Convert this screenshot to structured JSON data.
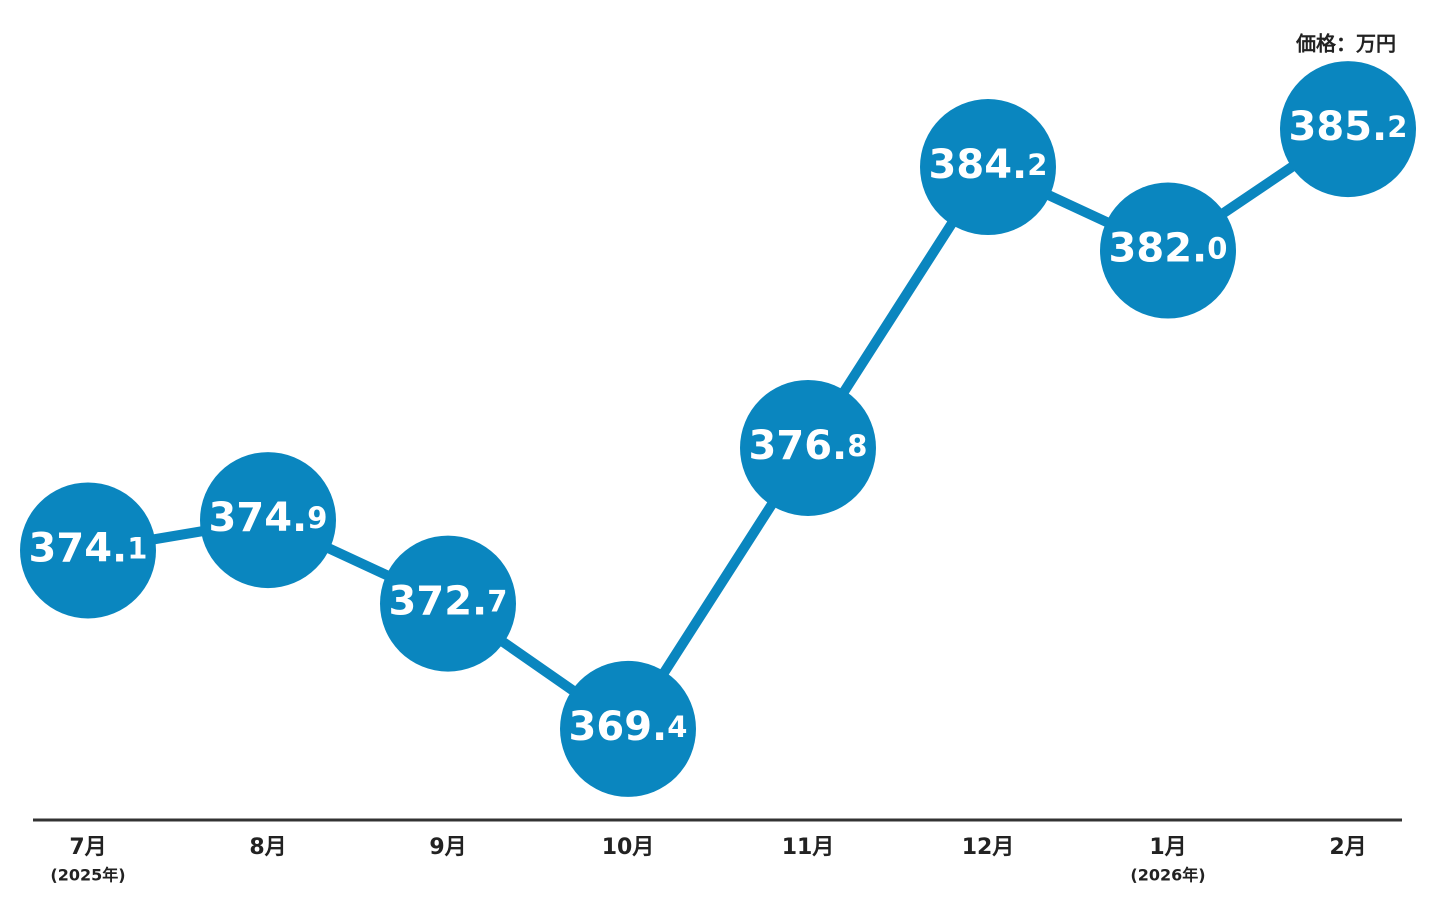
{
  "chart_data": {
    "type": "line",
    "unit_label": "価格：万円",
    "categories": [
      "7月",
      "8月",
      "9月",
      "10月",
      "11月",
      "12月",
      "1月",
      "2月"
    ],
    "category_notes": [
      "(2025年)",
      null,
      null,
      null,
      null,
      null,
      "(2026年)",
      null
    ],
    "values": [
      374.1,
      374.9,
      372.7,
      369.4,
      376.8,
      384.2,
      382.0,
      385.2
    ],
    "value_labels": [
      "374.1",
      "374.9",
      "372.7",
      "369.4",
      "376.8",
      "384.2",
      "382.0",
      "385.2"
    ],
    "color": "#0a86bf",
    "ylim": [
      367,
      388.6
    ]
  }
}
